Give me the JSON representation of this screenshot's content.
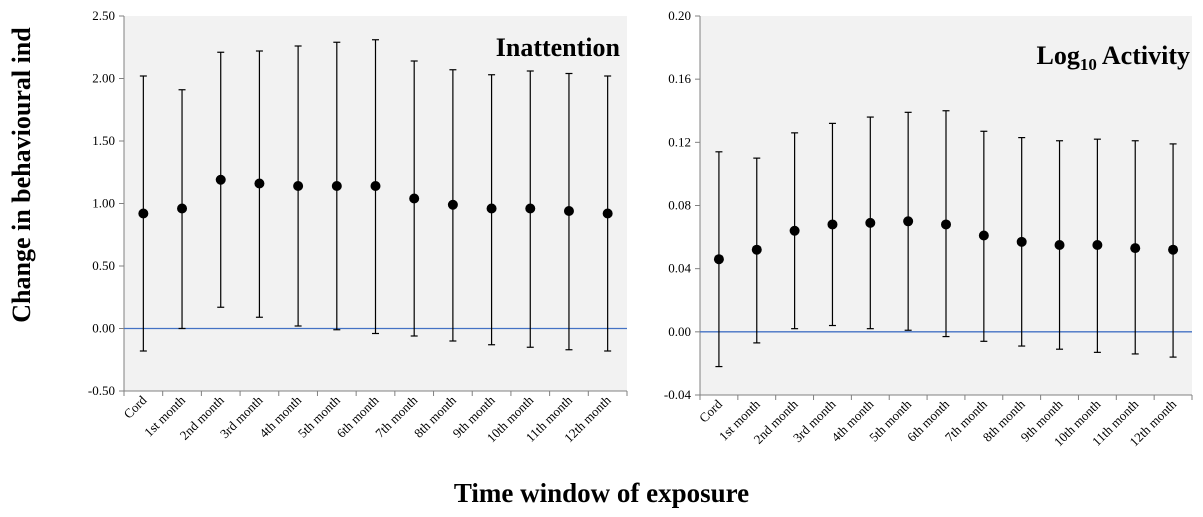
{
  "figure": {
    "ylabel": "Change in behavioural ind",
    "xlabel": "Time window of exposure"
  },
  "colors": {
    "plot_bg": "#f2f2f2",
    "reference_line": "#4472c4",
    "marker": "#000000",
    "axis": "#808080"
  },
  "chart_data": [
    {
      "type": "scatter",
      "title": "Inattention",
      "title_sub": "",
      "title_tail": "",
      "categories": [
        "Cord",
        "1st month",
        "2nd month",
        "3rd month",
        "4th month",
        "5th month",
        "6th month",
        "7th month",
        "8th month",
        "9th month",
        "10th month",
        "11th month",
        "12th month"
      ],
      "series": [
        {
          "values": [
            0.92,
            0.96,
            1.19,
            1.16,
            1.14,
            1.14,
            1.14,
            1.04,
            0.99,
            0.96,
            0.96,
            0.94,
            0.92
          ],
          "lower": [
            -0.18,
            0.0,
            0.17,
            0.09,
            0.02,
            -0.01,
            -0.04,
            -0.06,
            -0.1,
            -0.13,
            -0.15,
            -0.17,
            -0.18
          ],
          "upper": [
            2.02,
            1.91,
            2.21,
            2.22,
            2.26,
            2.29,
            2.31,
            2.14,
            2.07,
            2.03,
            2.06,
            2.04,
            2.02
          ]
        }
      ],
      "ylim": [
        -0.5,
        2.5
      ],
      "yticks": [
        "-0.50",
        "0.00",
        "0.50",
        "1.00",
        "1.50",
        "2.00",
        "2.50"
      ],
      "reference_line": 0,
      "grid": false
    },
    {
      "type": "scatter",
      "title": "Log",
      "title_sub": "10",
      "title_tail": " Activity",
      "categories": [
        "Cord",
        "1st month",
        "2nd month",
        "3rd month",
        "4th month",
        "5th month",
        "6th month",
        "7th month",
        "8th month",
        "9th month",
        "10th month",
        "11th month",
        "12th month"
      ],
      "series": [
        {
          "values": [
            0.046,
            0.052,
            0.064,
            0.068,
            0.069,
            0.07,
            0.068,
            0.061,
            0.057,
            0.055,
            0.055,
            0.053,
            0.052
          ],
          "lower": [
            -0.022,
            -0.007,
            0.002,
            0.004,
            0.002,
            0.001,
            -0.003,
            -0.006,
            -0.009,
            -0.011,
            -0.013,
            -0.014,
            -0.016
          ],
          "upper": [
            0.114,
            0.11,
            0.126,
            0.132,
            0.136,
            0.139,
            0.14,
            0.127,
            0.123,
            0.121,
            0.122,
            0.121,
            0.119
          ]
        }
      ],
      "ylim": [
        -0.04,
        0.2
      ],
      "yticks": [
        "-0.04",
        "0.00",
        "0.04",
        "0.08",
        "0.12",
        "0.16",
        "0.20"
      ],
      "reference_line": 0,
      "grid": false
    }
  ]
}
